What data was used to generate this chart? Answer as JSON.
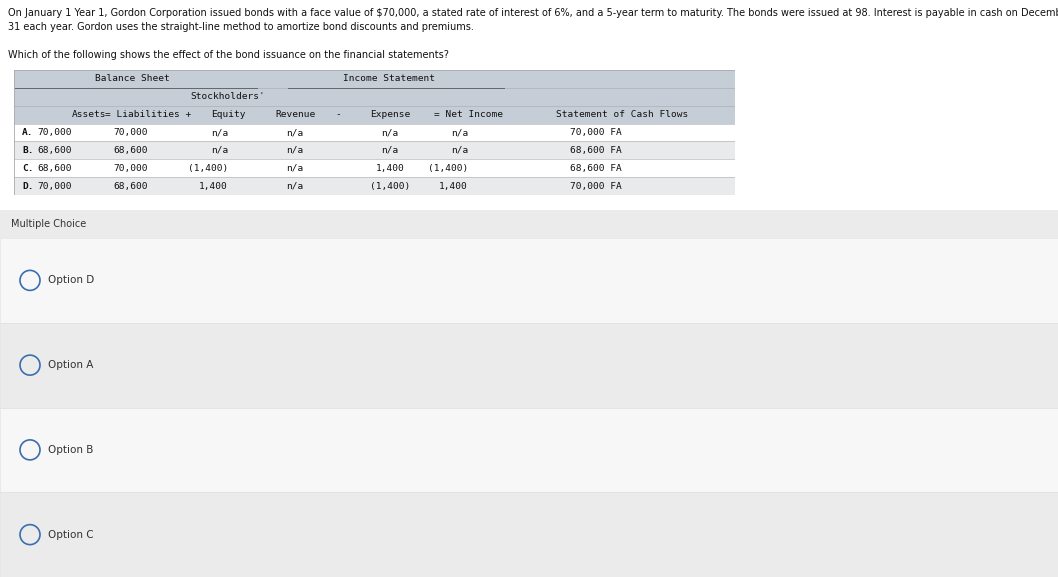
{
  "page_bg": "#ffffff",
  "q_line1": "On January 1 Year 1, Gordon Corporation issued bonds with a face value of $70,000, a stated rate of interest of 6%, and a 5-year term to maturity. The bonds were issued at 98. Interest is payable in cash on December",
  "q_line2": "31 each year. Gordon uses the straight-line method to amortize bond discounts and premiums.",
  "q_line3": "Which of the following shows the effect of the bond issuance on the financial statements?",
  "table_rows": [
    [
      "A.",
      "70,000",
      "70,000",
      "n/a",
      "n/a",
      "n/a",
      "n/a",
      "70,000 FA"
    ],
    [
      "B.",
      "68,600",
      "68,600",
      "n/a",
      "n/a",
      "n/a",
      "n/a",
      "68,600 FA"
    ],
    [
      "C.",
      "68,600",
      "70,000",
      "(1,400)",
      "n/a",
      "1,400",
      "(1,400)",
      "68,600 FA"
    ],
    [
      "D.",
      "70,000",
      "68,600",
      "1,400",
      "n/a",
      "(1,400)",
      "1,400",
      "70,000 FA"
    ]
  ],
  "table_header_bg": "#c5cdd6",
  "row_colors": [
    "#ffffff",
    "#e8eaec",
    "#ffffff",
    "#e8eaec"
  ],
  "mc_bar_bg": "#ebebeb",
  "option_colors": [
    "#f7f7f7",
    "#ebebeb",
    "#f7f7f7",
    "#ebebeb"
  ],
  "circle_color": "#3a6fad",
  "options": [
    "Option D",
    "Option A",
    "Option B",
    "Option C"
  ],
  "multiple_choice_label": "Multiple Choice"
}
